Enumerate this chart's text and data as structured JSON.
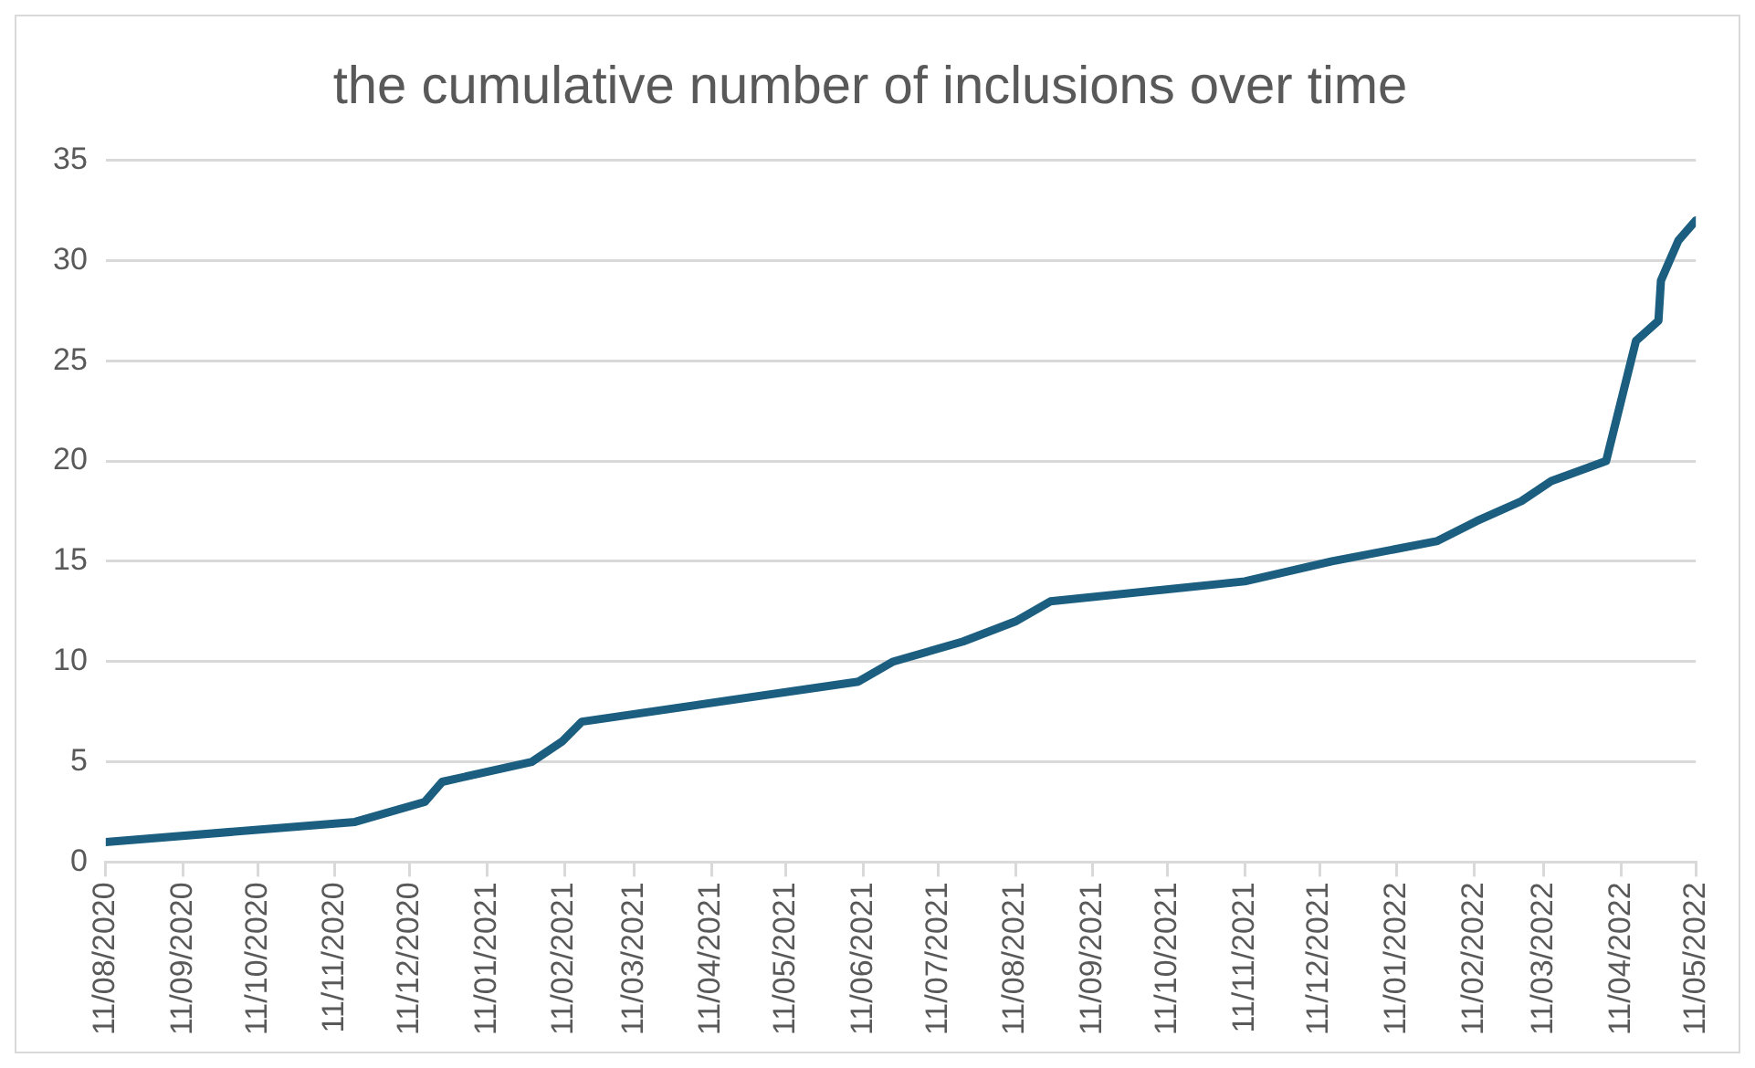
{
  "chart_data": {
    "type": "line",
    "title": "the cumulative number of inclusions over time",
    "x": [
      "2020-08-11",
      "2020-11-19",
      "2020-12-17",
      "2020-12-24",
      "2021-01-29",
      "2021-02-10",
      "2021-02-18",
      "2021-06-09",
      "2021-06-23",
      "2021-07-21",
      "2021-08-11",
      "2021-08-25",
      "2021-11-11",
      "2021-12-16",
      "2022-01-27",
      "2022-02-12",
      "2022-03-02",
      "2022-03-14",
      "2022-04-05",
      "2022-04-17",
      "2022-04-26",
      "2022-04-27",
      "2022-05-04",
      "2022-05-11"
    ],
    "series": [
      {
        "color": "#1b5e80",
        "values": [
          1,
          2,
          3,
          4,
          5,
          6,
          7,
          9,
          10,
          11,
          12,
          13,
          14,
          15,
          16,
          17,
          18,
          19,
          20,
          26,
          27,
          29,
          31,
          32
        ]
      }
    ],
    "xlim": [
      "2020-08-11",
      "2022-05-11"
    ],
    "xticks": [
      {
        "value": "2020-08-11",
        "label": "11/08/2020"
      },
      {
        "value": "2020-09-11",
        "label": "11/09/2020"
      },
      {
        "value": "2020-10-11",
        "label": "11/10/2020"
      },
      {
        "value": "2020-11-11",
        "label": "11/11/2020"
      },
      {
        "value": "2020-12-11",
        "label": "11/12/2020"
      },
      {
        "value": "2021-01-11",
        "label": "11/01/2021"
      },
      {
        "value": "2021-02-11",
        "label": "11/02/2021"
      },
      {
        "value": "2021-03-11",
        "label": "11/03/2021"
      },
      {
        "value": "2021-04-11",
        "label": "11/04/2021"
      },
      {
        "value": "2021-05-11",
        "label": "11/05/2021"
      },
      {
        "value": "2021-06-11",
        "label": "11/06/2021"
      },
      {
        "value": "2021-07-11",
        "label": "11/07/2021"
      },
      {
        "value": "2021-08-11",
        "label": "11/08/2021"
      },
      {
        "value": "2021-09-11",
        "label": "11/09/2021"
      },
      {
        "value": "2021-10-11",
        "label": "11/10/2021"
      },
      {
        "value": "2021-11-11",
        "label": "11/11/2021"
      },
      {
        "value": "2021-12-11",
        "label": "11/12/2021"
      },
      {
        "value": "2022-01-11",
        "label": "11/01/2022"
      },
      {
        "value": "2022-02-11",
        "label": "11/02/2022"
      },
      {
        "value": "2022-03-11",
        "label": "11/03/2022"
      },
      {
        "value": "2022-04-11",
        "label": "11/04/2022"
      },
      {
        "value": "2022-05-11",
        "label": "11/05/2022"
      }
    ],
    "ylim": [
      0,
      35
    ],
    "yticks": [
      0,
      5,
      10,
      15,
      20,
      25,
      30,
      35
    ],
    "grid": "y",
    "legend": false,
    "marker": "none",
    "line_style": "solid"
  }
}
